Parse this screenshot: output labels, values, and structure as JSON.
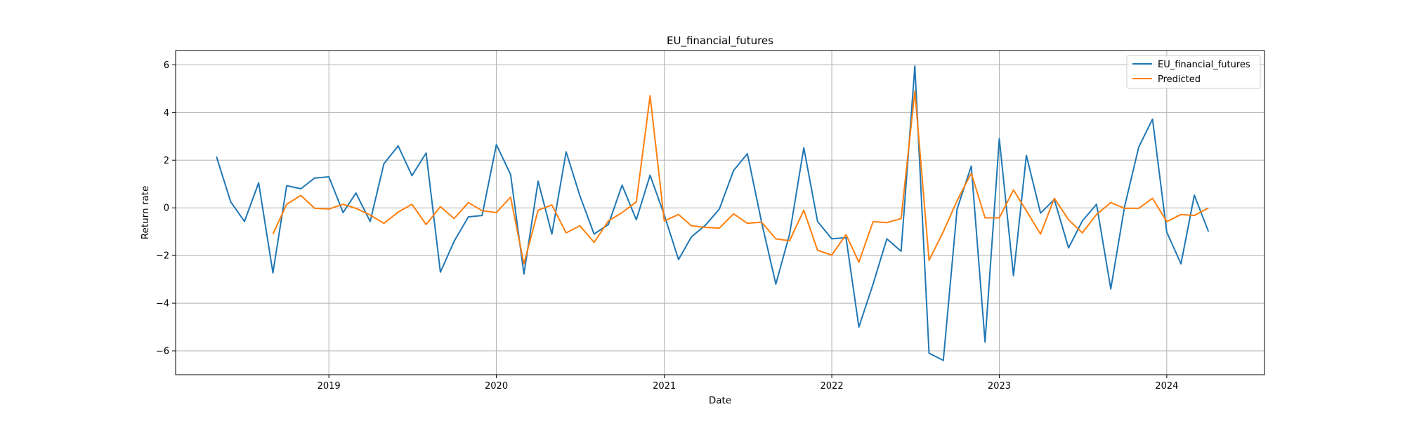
{
  "chart_data": {
    "type": "line",
    "title": "EU_financial_futures",
    "xlabel": "Date",
    "ylabel": "Return rate",
    "x_axis_type": "date",
    "xlim": [
      "2018-02-01",
      "2024-08-01"
    ],
    "ylim": [
      -7,
      6.6
    ],
    "x_ticks": [
      "2019-01-01",
      "2020-01-01",
      "2021-01-01",
      "2022-01-01",
      "2023-01-01",
      "2024-01-01"
    ],
    "x_tick_labels": [
      "2019",
      "2020",
      "2021",
      "2022",
      "2023",
      "2024"
    ],
    "y_ticks": [
      -6,
      -4,
      -2,
      0,
      2,
      4,
      6
    ],
    "y_tick_labels": [
      "−6",
      "−4",
      "−2",
      "0",
      "2",
      "4",
      "6"
    ],
    "grid": true,
    "legend_position": "top-right",
    "series": [
      {
        "name": "EU_financial_futures",
        "color": "#1f77b4",
        "x": [
          "2018-05-01",
          "2018-06-01",
          "2018-07-01",
          "2018-08-01",
          "2018-09-01",
          "2018-10-01",
          "2018-11-01",
          "2018-12-01",
          "2019-01-01",
          "2019-02-01",
          "2019-03-01",
          "2019-04-01",
          "2019-05-01",
          "2019-06-01",
          "2019-07-01",
          "2019-08-01",
          "2019-09-01",
          "2019-10-01",
          "2019-11-01",
          "2019-12-01",
          "2020-01-01",
          "2020-02-01",
          "2020-03-01",
          "2020-04-01",
          "2020-05-01",
          "2020-06-01",
          "2020-07-01",
          "2020-08-01",
          "2020-09-01",
          "2020-10-01",
          "2020-11-01",
          "2020-12-01",
          "2021-01-01",
          "2021-02-01",
          "2021-03-01",
          "2021-04-01",
          "2021-05-01",
          "2021-06-01",
          "2021-07-01",
          "2021-08-01",
          "2021-09-01",
          "2021-10-01",
          "2021-11-01",
          "2021-12-01",
          "2022-01-01",
          "2022-02-01",
          "2022-03-01",
          "2022-04-01",
          "2022-05-01",
          "2022-06-01",
          "2022-07-01",
          "2022-08-01",
          "2022-09-01",
          "2022-10-01",
          "2022-11-01",
          "2022-12-01",
          "2023-01-01",
          "2023-02-01",
          "2023-03-01",
          "2023-04-01",
          "2023-05-01",
          "2023-06-01",
          "2023-07-01",
          "2023-08-01",
          "2023-09-01",
          "2023-10-01",
          "2023-11-01",
          "2023-12-01",
          "2024-01-01",
          "2024-02-01",
          "2024-03-01",
          "2024-04-01"
        ],
        "values": [
          2.15,
          0.25,
          -0.57,
          1.05,
          -2.73,
          0.93,
          0.8,
          1.25,
          1.3,
          -0.2,
          0.62,
          -0.57,
          1.85,
          2.6,
          1.35,
          2.3,
          -2.7,
          -1.4,
          -0.38,
          -0.32,
          2.65,
          1.4,
          -2.78,
          1.12,
          -1.1,
          2.35,
          0.5,
          -1.1,
          -0.7,
          0.95,
          -0.5,
          1.37,
          -0.3,
          -2.17,
          -1.22,
          -0.72,
          -0.05,
          1.57,
          2.27,
          -0.6,
          -3.2,
          -1.1,
          2.52,
          -0.57,
          -1.3,
          -1.25,
          -5.0,
          -3.2,
          -1.3,
          -1.82,
          5.95,
          -6.1,
          -6.4,
          -0.05,
          1.75,
          -5.63,
          2.9,
          -2.85,
          2.2,
          -0.22,
          0.35,
          -1.68,
          -0.55,
          0.15,
          -3.4,
          0.05,
          2.55,
          3.72,
          -1.02,
          -2.35,
          0.53,
          -1.0
        ]
      },
      {
        "name": "Predicted",
        "color": "#ff7f0e",
        "x": [
          "2018-09-01",
          "2018-10-01",
          "2018-11-01",
          "2018-12-01",
          "2019-01-01",
          "2019-02-01",
          "2019-03-01",
          "2019-04-01",
          "2019-05-01",
          "2019-06-01",
          "2019-07-01",
          "2019-08-01",
          "2019-09-01",
          "2019-10-01",
          "2019-11-01",
          "2019-12-01",
          "2020-01-01",
          "2020-02-01",
          "2020-03-01",
          "2020-04-01",
          "2020-05-01",
          "2020-06-01",
          "2020-07-01",
          "2020-08-01",
          "2020-09-01",
          "2020-10-01",
          "2020-11-01",
          "2020-12-01",
          "2021-01-01",
          "2021-02-01",
          "2021-03-01",
          "2021-04-01",
          "2021-05-01",
          "2021-06-01",
          "2021-07-01",
          "2021-08-01",
          "2021-09-01",
          "2021-10-01",
          "2021-11-01",
          "2021-12-01",
          "2022-01-01",
          "2022-02-01",
          "2022-03-01",
          "2022-04-01",
          "2022-05-01",
          "2022-06-01",
          "2022-07-01",
          "2022-08-01",
          "2022-09-01",
          "2022-10-01",
          "2022-11-01",
          "2022-12-01",
          "2023-01-01",
          "2023-02-01",
          "2023-03-01",
          "2023-04-01",
          "2023-05-01",
          "2023-06-01",
          "2023-07-01",
          "2023-08-01",
          "2023-09-01",
          "2023-10-01",
          "2023-11-01",
          "2023-12-01",
          "2024-01-01",
          "2024-02-01",
          "2024-03-01",
          "2024-04-01"
        ],
        "values": [
          -1.1,
          0.15,
          0.52,
          -0.02,
          -0.05,
          0.15,
          -0.02,
          -0.3,
          -0.65,
          -0.18,
          0.15,
          -0.7,
          0.05,
          -0.45,
          0.22,
          -0.12,
          -0.2,
          0.45,
          -2.35,
          -0.1,
          0.12,
          -1.05,
          -0.75,
          -1.45,
          -0.55,
          -0.2,
          0.25,
          4.7,
          -0.55,
          -0.28,
          -0.75,
          -0.82,
          -0.85,
          -0.25,
          -0.65,
          -0.6,
          -1.3,
          -1.38,
          -0.1,
          -1.78,
          -1.98,
          -1.12,
          -2.28,
          -0.58,
          -0.62,
          -0.45,
          4.9,
          -2.2,
          -1.0,
          0.3,
          1.45,
          -0.42,
          -0.42,
          0.75,
          -0.12,
          -1.1,
          0.4,
          -0.5,
          -1.05,
          -0.28,
          0.22,
          -0.02,
          -0.02,
          0.4,
          -0.58,
          -0.28,
          -0.32,
          0.0
        ]
      }
    ]
  }
}
